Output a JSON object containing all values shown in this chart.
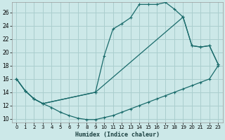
{
  "xlabel": "Humidex (Indice chaleur)",
  "bg_color": "#cce8e8",
  "grid_color": "#aacece",
  "line_color": "#1a6b6b",
  "xlim": [
    -0.5,
    23.5
  ],
  "ylim": [
    9.5,
    27.5
  ],
  "yticks": [
    10,
    12,
    14,
    16,
    18,
    20,
    22,
    24,
    26
  ],
  "xticks": [
    0,
    1,
    2,
    3,
    4,
    5,
    6,
    7,
    8,
    9,
    10,
    11,
    12,
    13,
    14,
    15,
    16,
    17,
    18,
    19,
    20,
    21,
    22,
    23
  ],
  "line1_x": [
    0,
    1,
    2,
    3,
    4,
    5,
    6,
    7,
    8,
    9,
    10,
    11,
    12,
    13,
    14,
    15,
    16,
    17,
    18,
    19,
    20,
    21,
    22,
    23
  ],
  "line1_y": [
    16.0,
    14.2,
    13.0,
    12.3,
    11.7,
    11.0,
    10.5,
    10.1,
    9.9,
    9.9,
    10.2,
    10.5,
    11.0,
    11.5,
    12.0,
    12.5,
    13.0,
    13.5,
    14.0,
    14.5,
    15.0,
    15.5,
    16.0,
    18.0
  ],
  "line2_x": [
    0,
    1,
    2,
    3,
    9,
    10,
    11,
    12,
    13,
    14,
    15,
    16,
    17,
    18,
    19,
    20,
    21,
    22,
    23
  ],
  "line2_y": [
    16.0,
    14.2,
    13.0,
    12.3,
    14.0,
    19.5,
    23.5,
    24.3,
    25.2,
    27.2,
    27.2,
    27.2,
    27.5,
    26.5,
    25.3,
    21.0,
    20.8,
    21.0,
    18.2
  ],
  "line3_x": [
    0,
    1,
    2,
    3,
    9,
    19,
    20,
    21,
    22,
    23
  ],
  "line3_y": [
    16.0,
    14.2,
    13.0,
    12.3,
    14.0,
    25.3,
    21.0,
    20.8,
    21.0,
    18.2
  ]
}
